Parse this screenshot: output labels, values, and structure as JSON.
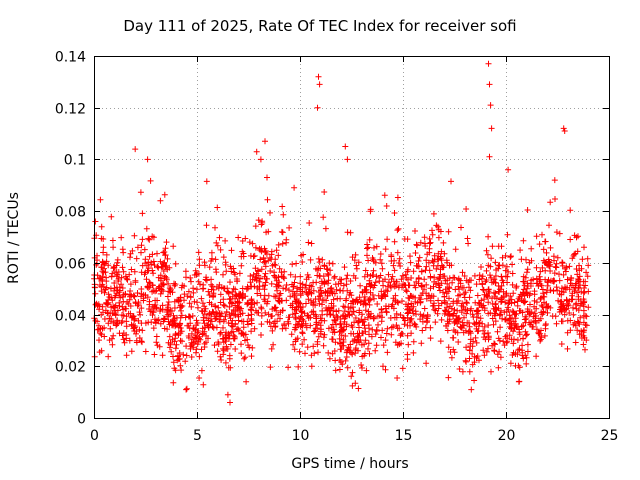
{
  "chart_data": {
    "type": "scatter",
    "title": "Day 111 of 2025, Rate Of TEC Index for receiver sofi",
    "xlabel": "GPS time / hours",
    "ylabel": "ROTI / TECUs",
    "xlim": [
      0,
      25
    ],
    "ylim": [
      0,
      0.14
    ],
    "xticks": [
      0,
      5,
      10,
      15,
      20,
      25
    ],
    "yticks": [
      0,
      0.02,
      0.04,
      0.06,
      0.08,
      0.1,
      0.12,
      0.14
    ],
    "grid": true,
    "marker": "+",
    "color": "#ff0000",
    "data_range_hours": [
      0,
      24
    ],
    "typical_band": [
      0.025,
      0.065
    ],
    "min_value_approx": 0.006,
    "notable_points": [
      {
        "x": 2.0,
        "y": 0.104
      },
      {
        "x": 2.6,
        "y": 0.1
      },
      {
        "x": 7.9,
        "y": 0.103
      },
      {
        "x": 8.1,
        "y": 0.1
      },
      {
        "x": 8.3,
        "y": 0.107
      },
      {
        "x": 8.4,
        "y": 0.093
      },
      {
        "x": 10.9,
        "y": 0.132
      },
      {
        "x": 10.95,
        "y": 0.129
      },
      {
        "x": 10.85,
        "y": 0.12
      },
      {
        "x": 12.2,
        "y": 0.105
      },
      {
        "x": 12.3,
        "y": 0.1
      },
      {
        "x": 19.15,
        "y": 0.137
      },
      {
        "x": 19.2,
        "y": 0.129
      },
      {
        "x": 19.25,
        "y": 0.121
      },
      {
        "x": 19.3,
        "y": 0.112
      },
      {
        "x": 19.2,
        "y": 0.101
      },
      {
        "x": 20.1,
        "y": 0.096
      },
      {
        "x": 22.8,
        "y": 0.112
      },
      {
        "x": 22.85,
        "y": 0.111
      },
      {
        "x": 6.6,
        "y": 0.006
      },
      {
        "x": 6.5,
        "y": 0.009
      }
    ]
  }
}
